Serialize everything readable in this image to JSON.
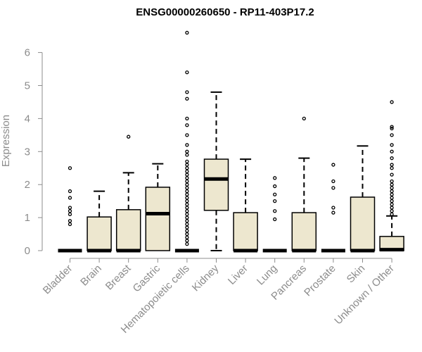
{
  "chart_data": {
    "type": "box",
    "title": "ENSG00000260650 - RP11-403P17.2",
    "xlabel": "",
    "ylabel": "Expression",
    "ylim": [
      0,
      6.8
    ],
    "yticks": [
      "0",
      "1",
      "2",
      "3",
      "4",
      "5",
      "6"
    ],
    "box_color": "#ede7cf",
    "categories": [
      "Bladder",
      "Brain",
      "Breast",
      "Gastric",
      "Hematopoietic cells",
      "Kidney",
      "Liver",
      "Lung",
      "Pancreas",
      "Prostate",
      "Skin",
      "Unknown / Other"
    ],
    "boxes": [
      {
        "min": 0,
        "q1": 0,
        "median": 0,
        "q3": 0,
        "max": 0,
        "outliers": [
          0.8,
          0.9,
          1.1,
          1.2,
          1.3,
          1.6,
          1.8,
          2.5
        ]
      },
      {
        "min": 0,
        "q1": 0,
        "median": 0,
        "q3": 1.02,
        "max": 1.8,
        "outliers": []
      },
      {
        "min": 0,
        "q1": 0,
        "median": 0,
        "q3": 1.24,
        "max": 2.36,
        "outliers": [
          3.45
        ]
      },
      {
        "min": 0,
        "q1": 0,
        "median": 1.12,
        "q3": 1.92,
        "max": 2.63,
        "outliers": []
      },
      {
        "min": 0,
        "q1": 0,
        "median": 0,
        "q3": 0,
        "max": 0,
        "outliers": [
          0.2,
          0.3,
          0.4,
          0.5,
          0.6,
          0.7,
          0.8,
          0.9,
          1.0,
          1.1,
          1.2,
          1.3,
          1.4,
          1.5,
          1.6,
          1.7,
          1.8,
          1.9,
          2.0,
          2.1,
          2.2,
          2.3,
          2.4,
          2.5,
          2.6,
          2.7,
          2.9,
          3.0,
          3.2,
          3.5,
          3.8,
          4.0,
          4.6,
          4.8,
          5.4,
          6.6
        ]
      },
      {
        "min": 0,
        "q1": 1.22,
        "median": 2.17,
        "q3": 2.77,
        "max": 4.8,
        "outliers": []
      },
      {
        "min": 0,
        "q1": 0,
        "median": 0,
        "q3": 1.15,
        "max": 2.77,
        "outliers": []
      },
      {
        "min": 0,
        "q1": 0,
        "median": 0,
        "q3": 0,
        "max": 0,
        "outliers": [
          0.95,
          1.2,
          1.5,
          1.7,
          1.95,
          2.2
        ]
      },
      {
        "min": 0,
        "q1": 0,
        "median": 0,
        "q3": 1.15,
        "max": 2.8,
        "outliers": [
          4.0
        ]
      },
      {
        "min": 0,
        "q1": 0,
        "median": 0,
        "q3": 0,
        "max": 0,
        "outliers": [
          1.15,
          1.3,
          1.9,
          2.1,
          2.6
        ]
      },
      {
        "min": 0,
        "q1": 0,
        "median": 0,
        "q3": 1.62,
        "max": 3.17,
        "outliers": []
      },
      {
        "min": 0,
        "q1": 0,
        "median": 0.03,
        "q3": 0.43,
        "max": 1.05,
        "outliers": [
          1.1,
          1.2,
          1.3,
          1.4,
          1.5,
          1.6,
          1.7,
          1.8,
          1.9,
          2.0,
          2.1,
          2.3,
          2.5,
          2.6,
          2.8,
          3.0,
          3.2,
          3.5,
          3.7,
          3.75,
          4.5
        ]
      }
    ]
  }
}
